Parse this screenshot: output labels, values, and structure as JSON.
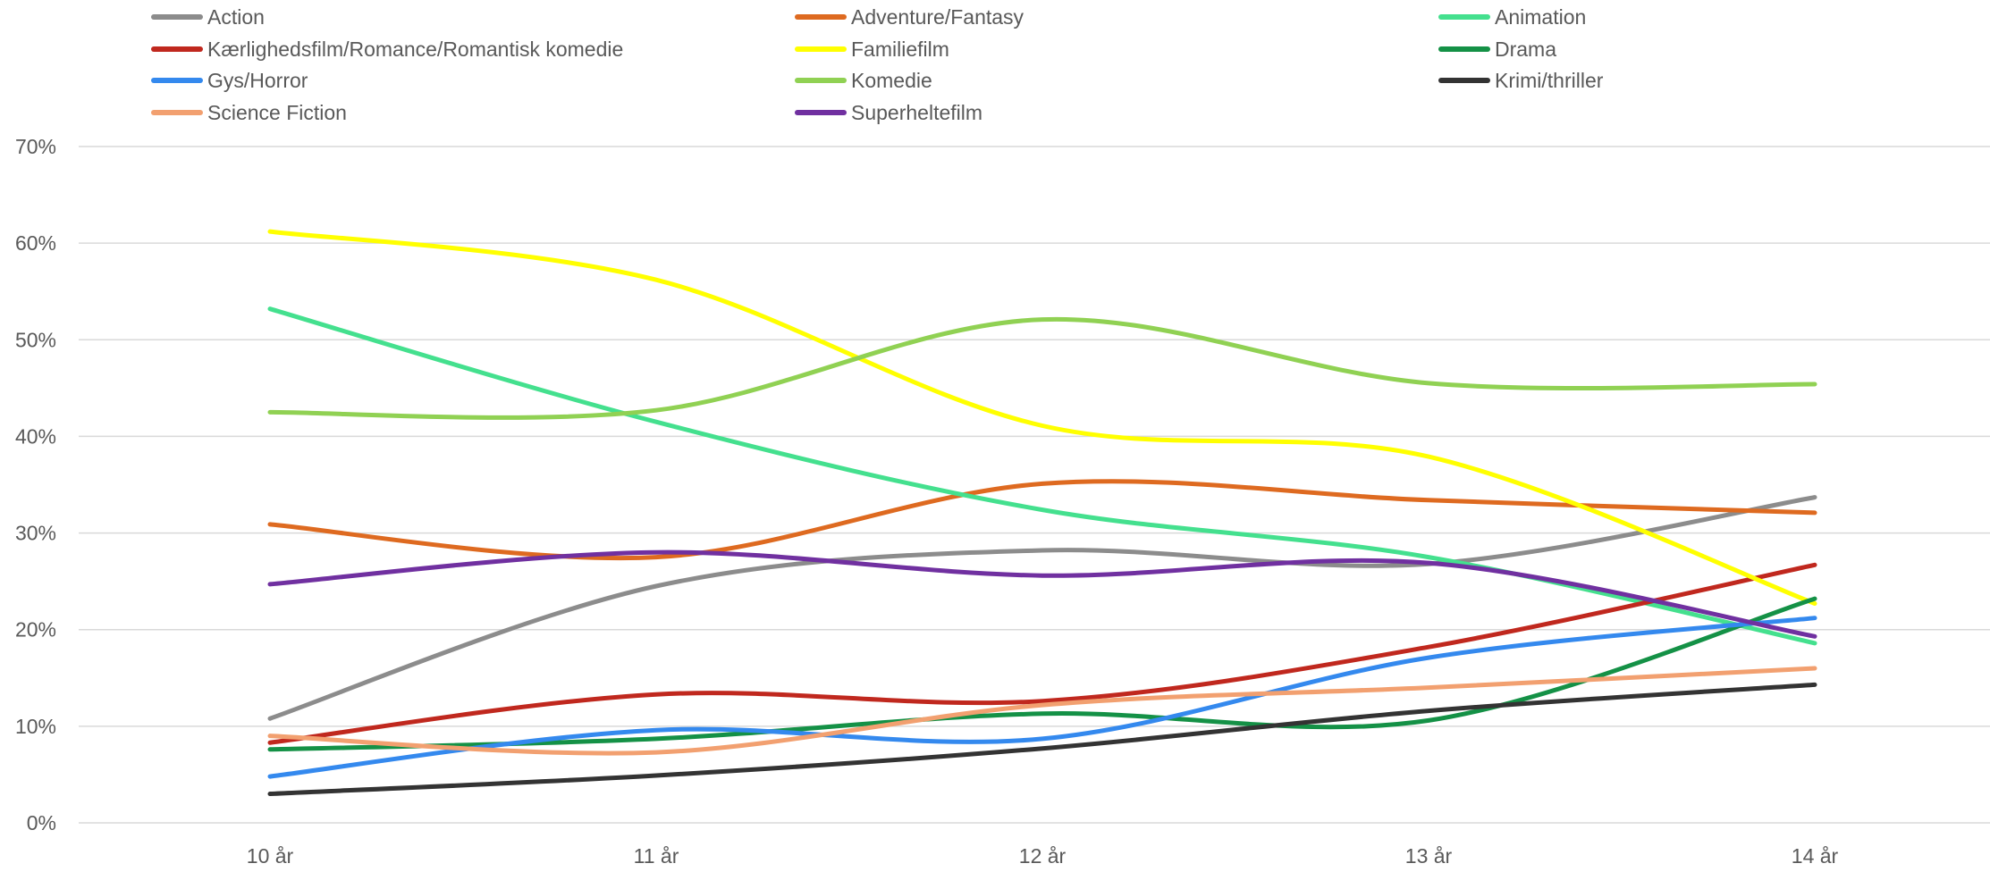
{
  "chart_data": {
    "type": "line",
    "smooth": true,
    "title": "",
    "xlabel": "",
    "ylabel": "",
    "categories": [
      "10 år",
      "11 år",
      "12 år",
      "13 år",
      "14 år"
    ],
    "ylim": [
      0,
      0.7
    ],
    "yticks": [
      "0%",
      "10%",
      "20%",
      "30%",
      "40%",
      "50%",
      "60%",
      "70%"
    ],
    "grid": true,
    "legend_position": "top",
    "series": [
      {
        "name": "Action",
        "color": "#8c8c8c",
        "values": [
          0.108,
          0.245,
          0.282,
          0.268,
          0.337
        ]
      },
      {
        "name": "Adventure/Fantasy",
        "color": "#de6a20",
        "values": [
          0.309,
          0.275,
          0.351,
          0.334,
          0.321
        ]
      },
      {
        "name": "Animation",
        "color": "#44e08e",
        "values": [
          0.532,
          0.415,
          0.324,
          0.275,
          0.186
        ]
      },
      {
        "name": "Kærlighedsfilm/Romance/Romantisk komedie",
        "color": "#c0281e",
        "values": [
          0.083,
          0.133,
          0.126,
          0.182,
          0.267
        ]
      },
      {
        "name": "Familiefilm",
        "color": "#ffff00",
        "values": [
          0.612,
          0.562,
          0.411,
          0.379,
          0.227
        ]
      },
      {
        "name": "Drama",
        "color": "#149146",
        "values": [
          0.076,
          0.087,
          0.113,
          0.106,
          0.232
        ]
      },
      {
        "name": "Gys/Horror",
        "color": "#3489ee",
        "values": [
          0.048,
          0.096,
          0.087,
          0.171,
          0.212
        ]
      },
      {
        "name": "Komedie",
        "color": "#90d153",
        "values": [
          0.425,
          0.427,
          0.521,
          0.455,
          0.454
        ]
      },
      {
        "name": "Krimi/thriller",
        "color": "#333333",
        "values": [
          0.03,
          0.049,
          0.077,
          0.116,
          0.143
        ]
      },
      {
        "name": "Science Fiction",
        "color": "#f2a070",
        "values": [
          0.09,
          0.073,
          0.122,
          0.14,
          0.16
        ]
      },
      {
        "name": "Superheltefilm",
        "color": "#7030a0",
        "values": [
          0.247,
          0.28,
          0.256,
          0.269,
          0.193
        ]
      }
    ]
  }
}
